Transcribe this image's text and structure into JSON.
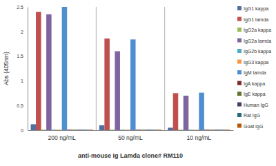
{
  "chart_data": {
    "type": "bar",
    "categories": [
      "200 ng/mL",
      "50 ng/mL",
      "10 ng/mL"
    ],
    "x_label": "anti-mouse Ig Lamda clone# RM110",
    "y_label": "Abs (405nm)",
    "ylim": [
      0,
      2.5
    ],
    "yticks": [
      0,
      0.5,
      1,
      1.5,
      2,
      2.5
    ],
    "legend": "right",
    "series": [
      {
        "name": "IgG1 kappa",
        "color": "#4f6fa3",
        "values": [
          0.12,
          0.1,
          0.05
        ]
      },
      {
        "name": "IgG1 lamda",
        "color": "#c0504d",
        "values": [
          2.4,
          1.86,
          0.75
        ]
      },
      {
        "name": "IgG2a kappa",
        "color": "#9bbb59",
        "values": [
          0.01,
          0.01,
          0.01
        ]
      },
      {
        "name": "IgG2a lamda",
        "color": "#8064a2",
        "values": [
          2.35,
          1.6,
          0.7
        ]
      },
      {
        "name": "IgG2b kappa",
        "color": "#4bacc6",
        "values": [
          0.01,
          0.01,
          0.01
        ]
      },
      {
        "name": "IgG3 kappa",
        "color": "#f79646",
        "values": [
          0.01,
          0.01,
          0.01
        ]
      },
      {
        "name": "IgM lamda",
        "color": "#4f8fcf",
        "values": [
          2.5,
          1.84,
          0.76
        ]
      },
      {
        "name": "IgA kappa",
        "color": "#772c2a",
        "values": [
          0.01,
          0.01,
          0.01
        ]
      },
      {
        "name": "IgE kappa",
        "color": "#5f7530",
        "values": [
          0.01,
          0.01,
          0.01
        ]
      },
      {
        "name": "Human IgG",
        "color": "#4d3b62",
        "values": [
          0.01,
          0.01,
          0.01
        ]
      },
      {
        "name": "Rat IgG",
        "color": "#276a7c",
        "values": [
          0.01,
          0.01,
          0.01
        ]
      },
      {
        "name": "Goat IgG",
        "color": "#b65708",
        "values": [
          0.01,
          0.01,
          0.01
        ]
      }
    ]
  }
}
